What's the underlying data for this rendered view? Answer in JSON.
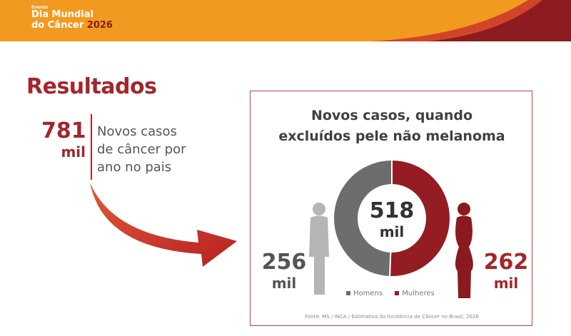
{
  "header": {
    "event_label": "Evento",
    "event_line1": "Dia Mundial",
    "event_line2": "do Câncer",
    "event_year": "2026",
    "colors": {
      "orange": "#f29a1f",
      "dark_red": "#8d1b1f"
    }
  },
  "title": "Resultados",
  "stat": {
    "number": "781",
    "unit": "mil",
    "description_lines": [
      "Novos casos",
      "de câncer por",
      "ano no pais"
    ],
    "color": "#a3262b"
  },
  "card": {
    "title_lines": [
      "Novos casos, quando",
      "excluídos pele não melanoma"
    ],
    "total_number": "518",
    "total_unit": "mil",
    "men_number": "256",
    "men_unit": "mil",
    "women_number": "262",
    "women_unit": "mil",
    "legend": [
      "Homens",
      "Mulheres"
    ],
    "source": "Fonte: MS / INCA / Estimativa da Incidência de Câncer no Brasil, 2026"
  },
  "chart_data": {
    "type": "pie",
    "title": "Novos casos, quando excluídos pele não melanoma",
    "categories": [
      "Homens",
      "Mulheres"
    ],
    "values": [
      256,
      262
    ],
    "total": 518,
    "unit": "mil",
    "colors": [
      "#6d6d6d",
      "#931d23"
    ],
    "legend_position": "bottom"
  },
  "icons": [
    "curved-arrow-icon",
    "male-silhouette-icon",
    "female-silhouette-icon"
  ]
}
